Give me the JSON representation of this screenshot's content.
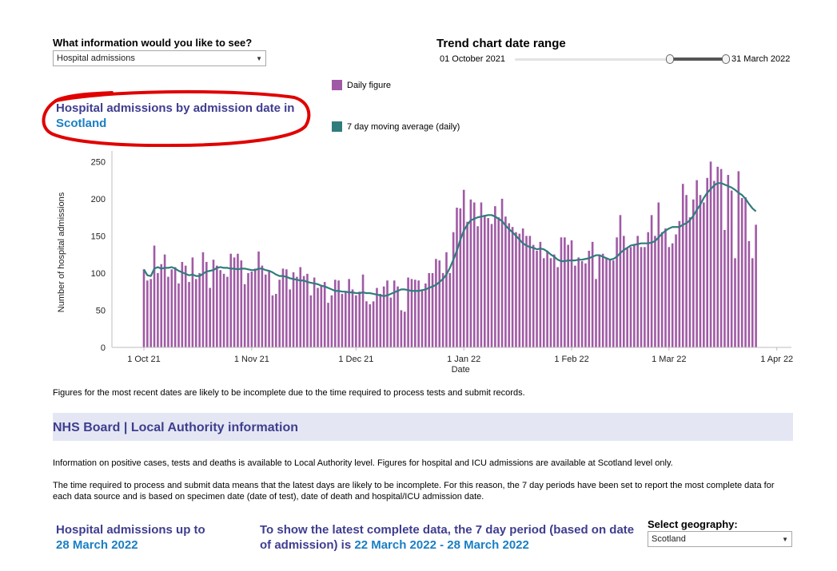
{
  "filters": {
    "info_question": "What information would you like to see?",
    "info_value": "Hospital admissions",
    "range_title": "Trend chart date range",
    "range_start": "01 October 2021",
    "range_end": "31 March 2022"
  },
  "chart_title": {
    "line1": "Hospital admissions by admission date in",
    "place": "Scotland"
  },
  "legend": {
    "daily": "Daily figure",
    "avg": "7 day moving average (daily)"
  },
  "colors": {
    "daily": "#a05aa5",
    "avg": "#2f7c7d",
    "title": "#3f3d8f",
    "accent": "#1a7fc4",
    "annotation": "#e00000",
    "banner": "#e4e7f3"
  },
  "chart_data": {
    "type": "bar",
    "xlabel": "Date",
    "ylabel": "Number of hospital admissions",
    "ylim": [
      0,
      260
    ],
    "y_ticks": [
      0,
      50,
      100,
      150,
      200,
      250
    ],
    "x_ticks": [
      "1 Oct 21",
      "1 Nov 21",
      "1 Dec 21",
      "1 Jan 22",
      "1 Feb 22",
      "1 Mar 22",
      "1 Apr 22"
    ],
    "x_tick_dates": [
      "2021-10-01",
      "2021-11-01",
      "2021-12-01",
      "2022-01-01",
      "2022-02-01",
      "2022-03-01",
      "2022-04-01"
    ],
    "start_date": "2021-10-01",
    "end_date": "2022-03-31",
    "grid": false,
    "series": [
      {
        "name": "Daily figure",
        "type": "bar",
        "values": [
          105,
          90,
          92,
          137,
          100,
          112,
          125,
          95,
          105,
          108,
          86,
          115,
          110,
          88,
          121,
          92,
          100,
          128,
          115,
          80,
          118,
          110,
          104,
          99,
          95,
          126,
          121,
          126,
          117,
          85,
          100,
          102,
          106,
          129,
          110,
          98,
          102,
          70,
          72,
          91,
          106,
          105,
          78,
          101,
          95,
          108,
          96,
          99,
          70,
          94,
          80,
          83,
          88,
          60,
          70,
          91,
          90,
          72,
          75,
          92,
          78,
          70,
          75,
          98,
          62,
          58,
          62,
          80,
          72,
          82,
          90,
          67,
          90,
          82,
          50,
          48,
          94,
          92,
          91,
          90,
          77,
          86,
          100,
          100,
          119,
          117,
          100,
          128,
          100,
          155,
          188,
          187,
          212,
          169,
          199,
          195,
          163,
          195,
          178,
          174,
          166,
          190,
          175,
          200,
          176,
          167,
          162,
          155,
          153,
          160,
          150,
          150,
          138,
          130,
          142,
          120,
          130,
          120,
          125,
          108,
          148,
          148,
          138,
          144,
          110,
          121,
          116,
          113,
          130,
          142,
          92,
          125,
          126,
          120,
          118,
          117,
          148,
          178,
          150,
          133,
          135,
          137,
          150,
          135,
          135,
          155,
          178,
          150,
          195,
          155,
          160,
          135,
          140,
          152,
          170,
          220,
          205,
          175,
          199,
          225,
          205,
          195,
          228,
          250,
          224,
          243,
          240,
          158,
          232,
          211,
          120,
          237,
          201,
          202,
          143,
          120,
          165
        ],
        "visible_count": 177
      },
      {
        "name": "7 day moving average (daily)",
        "type": "line",
        "values": [
          105,
          97,
          96,
          106,
          108,
          106,
          107,
          107,
          108,
          106,
          103,
          101,
          99,
          97,
          98,
          96,
          96,
          99,
          102,
          103,
          104,
          107,
          108,
          107,
          107,
          106,
          106,
          105,
          106,
          106,
          105,
          104,
          104,
          106,
          106,
          104,
          103,
          101,
          98,
          96,
          96,
          95,
          93,
          92,
          91,
          90,
          90,
          88,
          87,
          86,
          85,
          83,
          82,
          80,
          78,
          76,
          76,
          75,
          75,
          74,
          74,
          73,
          73,
          74,
          73,
          73,
          72,
          71,
          70,
          69,
          70,
          72,
          74,
          76,
          78,
          78,
          77,
          76,
          76,
          76,
          77,
          78,
          80,
          82,
          84,
          88,
          92,
          98,
          107,
          118,
          130,
          145,
          157,
          165,
          171,
          173,
          175,
          176,
          177,
          178,
          178,
          176,
          173,
          170,
          164,
          159,
          155,
          150,
          145,
          140,
          137,
          135,
          134,
          132,
          133,
          132,
          129,
          125,
          122,
          118,
          116,
          116,
          117,
          117,
          117,
          118,
          118,
          119,
          120,
          122,
          124,
          124,
          122,
          120,
          118,
          119,
          122,
          127,
          131,
          134,
          137,
          138,
          139,
          140,
          140,
          140,
          141,
          143,
          148,
          153,
          157,
          160,
          162,
          162,
          162,
          165,
          167,
          171,
          177,
          185,
          192,
          201,
          208,
          213,
          218,
          221,
          221,
          219,
          217,
          215,
          212,
          208,
          205,
          200,
          193,
          187,
          183
        ]
      }
    ]
  },
  "note": "Figures for the most recent dates are likely to be incomplete due to the time required to process tests and submit records.",
  "banner": "NHS Board | Local Authority information",
  "para1": "Information on positive cases, tests and deaths is available to Local Authority level. Figures for hospital and ICU admissions are available at Scotland level only.",
  "para2": "The time required to process and submit data means that the latest days are likely to be incomplete. For this reason, the 7 day periods have been set to report the most complete data for each data source and is based on specimen date (date of test), date of death and hospital/ICU admission date.",
  "summary": {
    "up_to_label": "Hospital admissions up to",
    "up_to_date": "28 March 2022",
    "period_text": "To show the latest complete data, the 7 day period (based on date of admission) is",
    "period_start": "22 March 2022",
    "period_dash": "-",
    "period_end": "28 March 2022"
  },
  "geography": {
    "label": "Select geography:",
    "value": "Scotland"
  }
}
